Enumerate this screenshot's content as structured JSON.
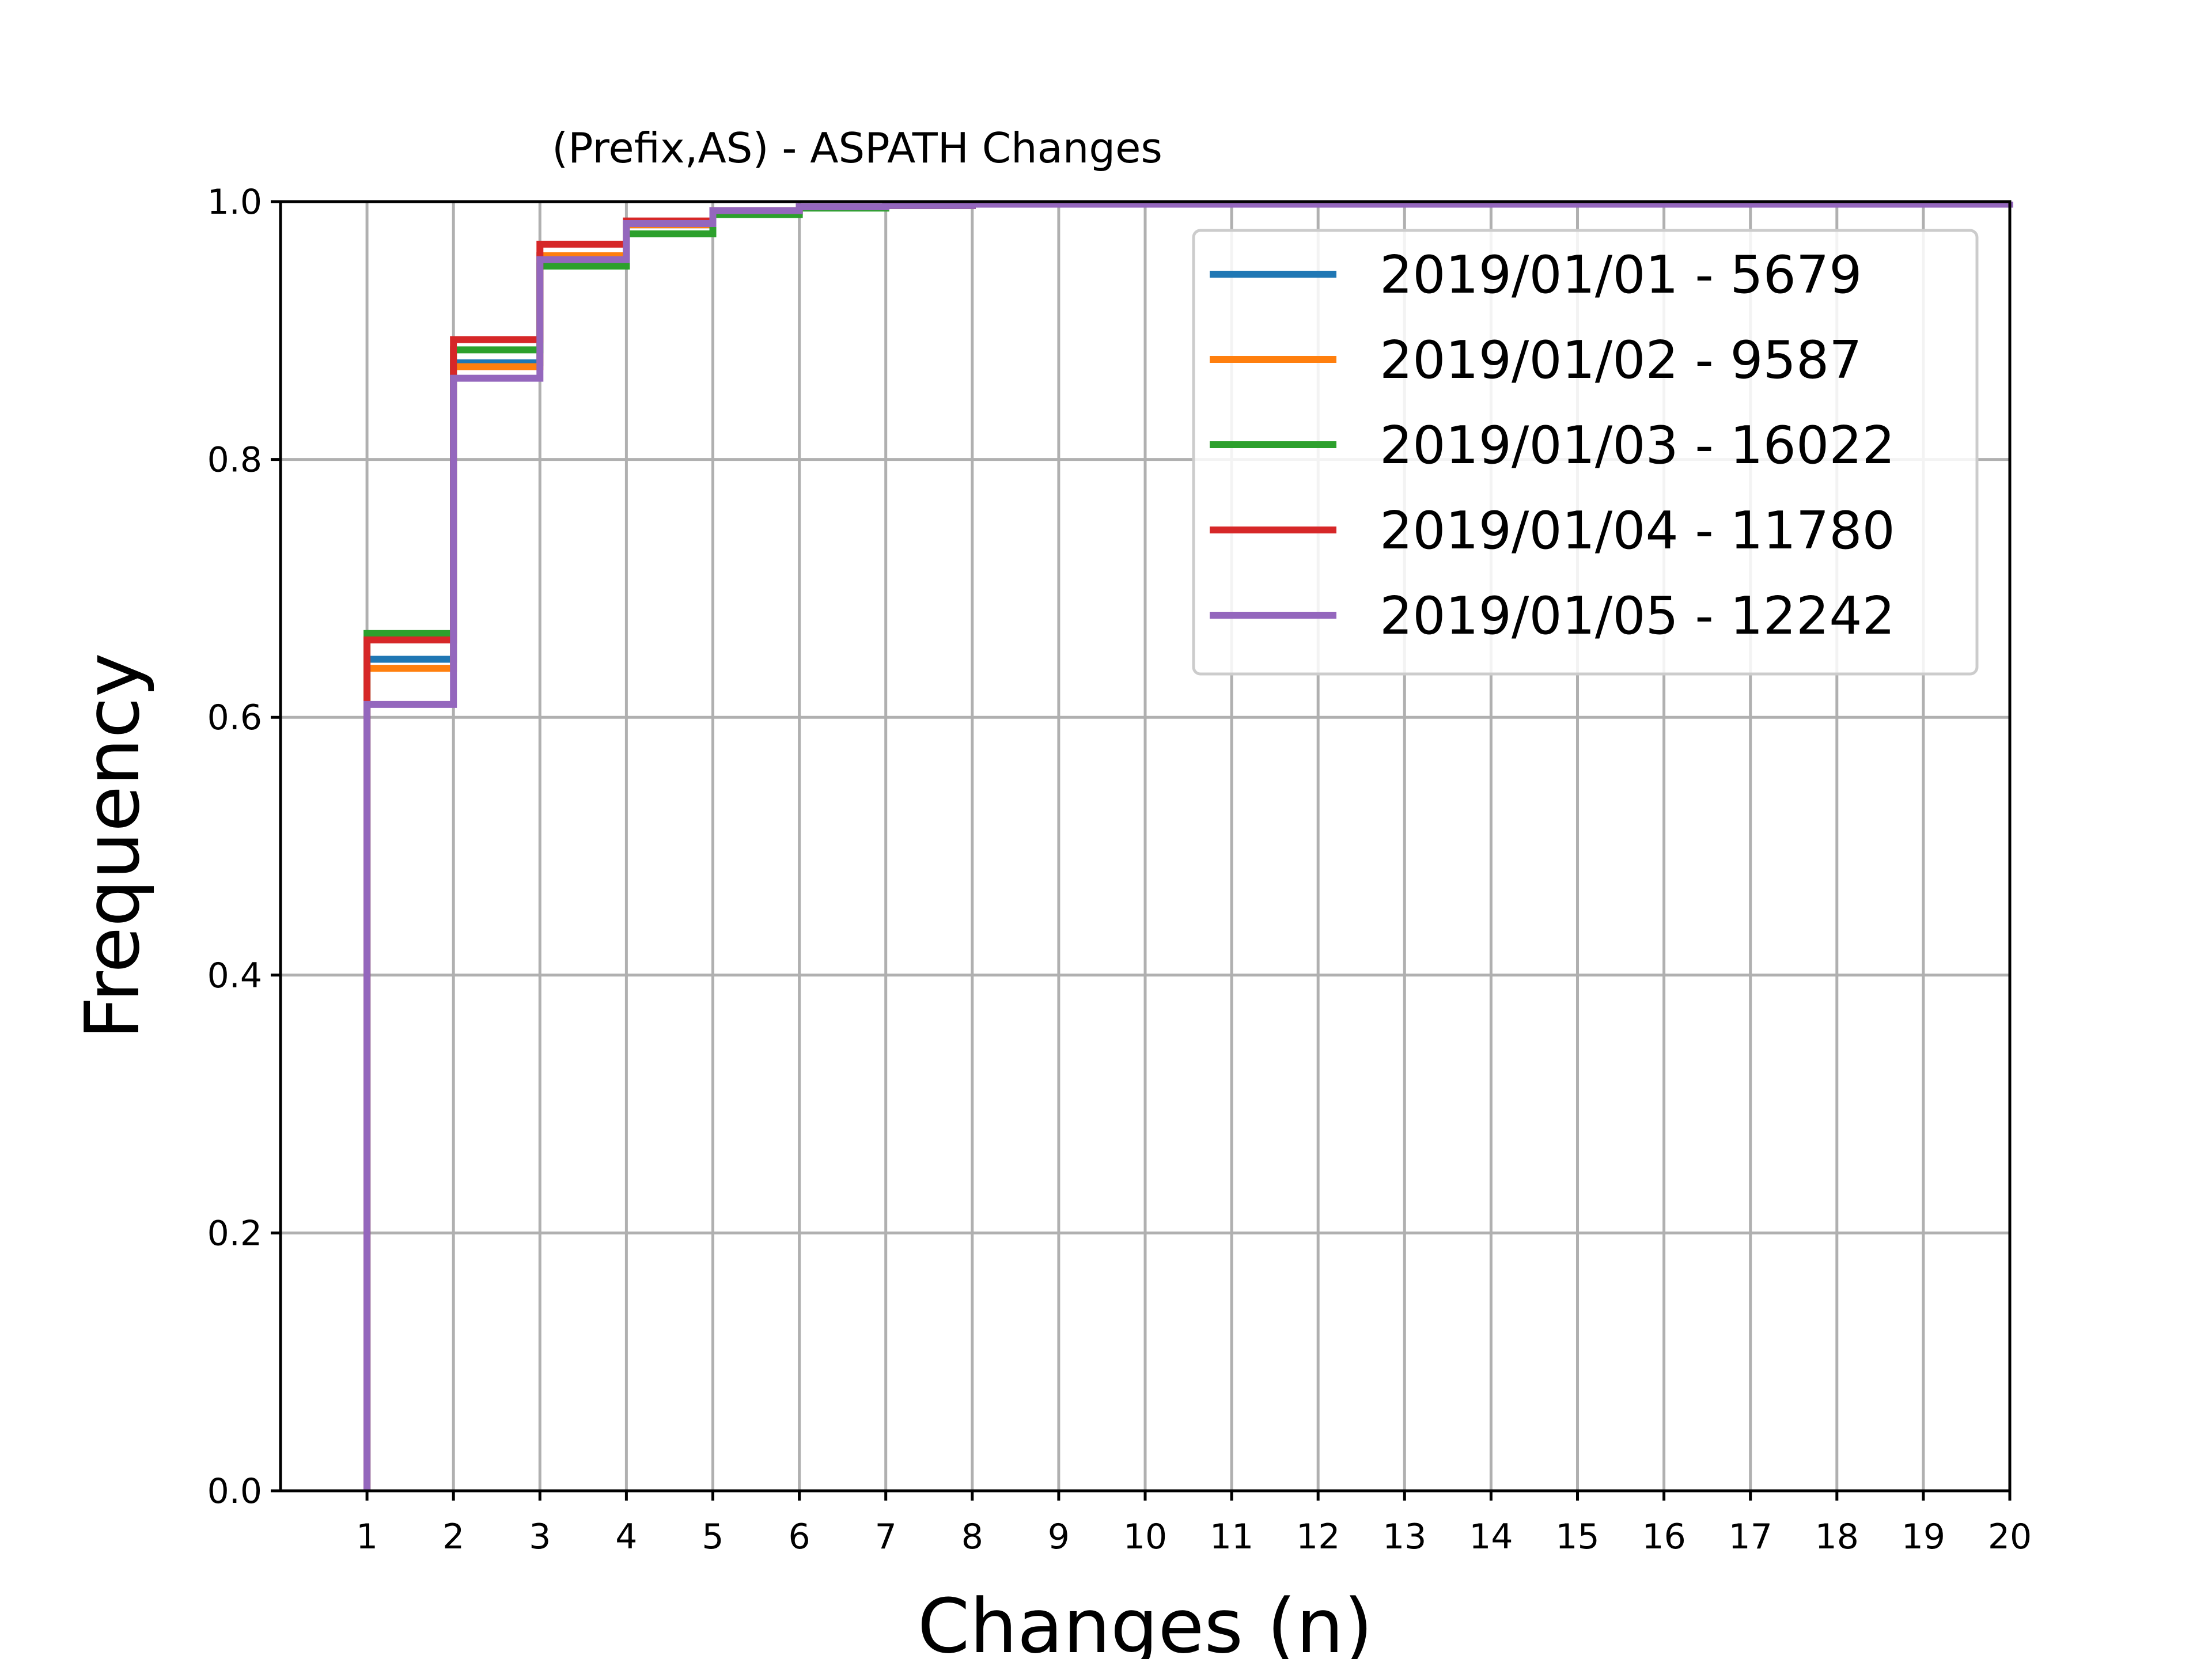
{
  "chart_data": {
    "type": "line",
    "step": "post",
    "title": "(Prefix,AS) - ASPATH Changes",
    "xlabel": "Changes (n)",
    "ylabel": "Frequency",
    "xlim": [
      0,
      20
    ],
    "ylim": [
      0.0,
      1.0
    ],
    "xticks": [
      "1",
      "2",
      "3",
      "4",
      "5",
      "6",
      "7",
      "8",
      "9",
      "10",
      "11",
      "12",
      "13",
      "14",
      "15",
      "16",
      "17",
      "18",
      "19",
      "20"
    ],
    "yticks": [
      "0.0",
      "0.2",
      "0.4",
      "0.6",
      "0.8",
      "1.0"
    ],
    "grid": true,
    "legend_position": "upper-right",
    "x": [
      1,
      2,
      3,
      4,
      5,
      6,
      7,
      8,
      20
    ],
    "series": [
      {
        "name": "2019/01/01 - 5679",
        "color": "#1f77b4",
        "values": [
          0.645,
          0.875,
          0.958,
          0.982,
          0.992,
          0.996,
          0.997,
          0.998,
          1.0
        ]
      },
      {
        "name": "2019/01/02 - 9587",
        "color": "#ff7f0e",
        "values": [
          0.638,
          0.872,
          0.958,
          0.982,
          0.993,
          0.996,
          0.997,
          0.998,
          1.0
        ]
      },
      {
        "name": "2019/01/03 - 16022",
        "color": "#2ca02c",
        "values": [
          0.665,
          0.885,
          0.95,
          0.975,
          0.99,
          0.995,
          0.997,
          0.998,
          1.0
        ]
      },
      {
        "name": "2019/01/04 - 11780",
        "color": "#d62728",
        "values": [
          0.66,
          0.893,
          0.967,
          0.985,
          0.993,
          0.996,
          0.997,
          0.998,
          1.0
        ]
      },
      {
        "name": "2019/01/05 - 12242",
        "color": "#9467bd",
        "values": [
          0.61,
          0.863,
          0.955,
          0.983,
          0.993,
          0.996,
          0.997,
          0.998,
          1.0
        ]
      }
    ]
  }
}
